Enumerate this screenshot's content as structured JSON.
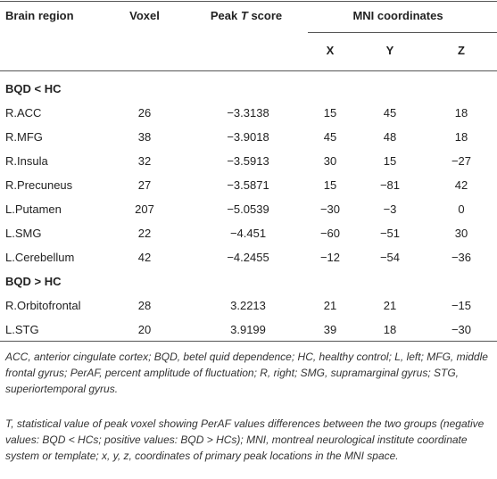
{
  "table": {
    "header": {
      "brain_region": "Brain region",
      "voxel": "Voxel",
      "peak_t_score": [
        "Peak",
        "T",
        "score"
      ],
      "mni": "MNI coordinates",
      "coords": [
        "X",
        "Y",
        "Z"
      ]
    },
    "sections": [
      {
        "label": "BQD < HC",
        "rows": [
          [
            "R.ACC",
            "26",
            "−3.3138",
            "15",
            "45",
            "18"
          ],
          [
            "R.MFG",
            "38",
            "−3.9018",
            "45",
            "48",
            "18"
          ],
          [
            "R.Insula",
            "32",
            "−3.5913",
            "30",
            "15",
            "−27"
          ],
          [
            "R.Precuneus",
            "27",
            "−3.5871",
            "15",
            "−81",
            "42"
          ],
          [
            "L.Putamen",
            "207",
            "−5.0539",
            "−30",
            "−3",
            "0"
          ],
          [
            "L.SMG",
            "22",
            "−4.451",
            "−60",
            "−51",
            "30"
          ],
          [
            "L.Cerebellum",
            "42",
            "−4.2455",
            "−12",
            "−54",
            "−36"
          ]
        ]
      },
      {
        "label": "BQD > HC",
        "rows": [
          [
            "R.Orbitofrontal",
            "28",
            "3.2213",
            "21",
            "21",
            "−15"
          ],
          [
            "L.STG",
            "20",
            "3.9199",
            "39",
            "18",
            "−30"
          ]
        ]
      }
    ],
    "footnotes": [
      "ACC, anterior cingulate cortex; BQD, betel quid dependence; HC, healthy control; L, left; MFG, middle frontal gyrus; PerAF, percent amplitude of fluctuation; R, right; SMG, supramarginal gyrus; STG, superiortemporal gyrus.",
      "T, statistical value of peak voxel showing PerAF values differences between the two groups (negative values: BQD < HCs; positive values: BQD > HCs); MNI, montreal neurological institute coordinate system or template; x, y, z, coordinates of primary peak locations in the MNI space."
    ]
  }
}
